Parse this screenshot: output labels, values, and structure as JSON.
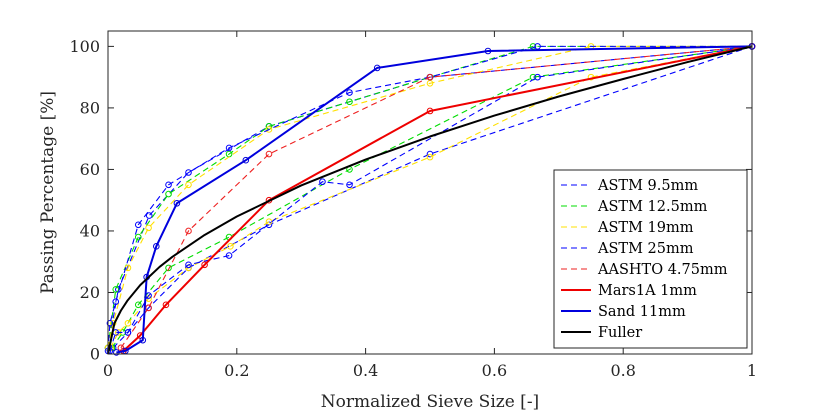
{
  "chart_data": {
    "type": "line",
    "title": "",
    "xlabel": "Normalized Sieve Size [-]",
    "ylabel": "Passing Percentage [%]",
    "xlim": [
      0,
      1
    ],
    "ylim": [
      0,
      105
    ],
    "x_ticks": [
      0,
      0.2,
      0.4,
      0.6,
      0.8,
      1
    ],
    "x_tick_labels": [
      "0",
      "0.2",
      "0.4",
      "0.6",
      "0.8",
      "1"
    ],
    "y_ticks": [
      0,
      20,
      40,
      60,
      80,
      100
    ],
    "y_tick_labels": [
      "0",
      "20",
      "40",
      "60",
      "80",
      "100"
    ],
    "grid": false,
    "legend_position": "lower-right",
    "series": [
      {
        "name": "ASTM 9.5mm",
        "color": "#0000ff",
        "style": "dashed",
        "marker": "circle",
        "x": [
          0.0,
          0.016,
          0.064,
          0.125,
          0.25,
          0.5,
          1.0
        ],
        "y": [
          2,
          21,
          45,
          59,
          74,
          90,
          100
        ]
      },
      {
        "name": "ASTM 9.5mm",
        "color": "#0000ff",
        "style": "dashed",
        "marker": "circle",
        "x": [
          0.008,
          0.031,
          0.063,
          0.125,
          0.25,
          0.5,
          1.0
        ],
        "y": [
          2,
          7,
          15,
          28,
          42,
          65,
          100
        ]
      },
      {
        "name": "ASTM 12.5mm",
        "color": "#00dd00",
        "style": "dashed",
        "marker": "circle",
        "x": [
          0.0,
          0.012,
          0.047,
          0.094,
          0.188,
          0.25,
          0.375,
          0.5,
          0.66,
          1.0
        ],
        "y": [
          2,
          21,
          38,
          52,
          65,
          74,
          82,
          90,
          100,
          100
        ]
      },
      {
        "name": "ASTM 12.5mm",
        "color": "#00dd00",
        "style": "dashed",
        "marker": "circle",
        "x": [
          0.006,
          0.023,
          0.047,
          0.094,
          0.188,
          0.375,
          0.66,
          1.0
        ],
        "y": [
          2,
          7,
          16,
          28,
          38,
          60,
          90,
          100
        ]
      },
      {
        "name": "ASTM 19mm",
        "color": "#ffe000",
        "style": "dashed",
        "marker": "circle",
        "x": [
          0.0,
          0.008,
          0.031,
          0.063,
          0.125,
          0.25,
          0.5,
          0.75,
          1.0
        ],
        "y": [
          2,
          10,
          28,
          41,
          55,
          73,
          88,
          100,
          100
        ]
      },
      {
        "name": "ASTM 19mm",
        "color": "#ffe000",
        "style": "dashed",
        "marker": "circle",
        "x": [
          0.004,
          0.016,
          0.031,
          0.063,
          0.125,
          0.19,
          0.25,
          0.5,
          0.75,
          1.0
        ],
        "y": [
          2,
          7,
          10,
          18,
          28,
          35,
          43,
          64,
          90,
          100
        ]
      },
      {
        "name": "ASTM 25mm",
        "color": "#0000ff",
        "style": "dashed",
        "marker": "circle",
        "x": [
          0.0,
          0.003,
          0.012,
          0.047,
          0.094,
          0.188,
          0.375,
          0.5,
          0.667,
          1.0
        ],
        "y": [
          1,
          10,
          17,
          42,
          55,
          67,
          85,
          90,
          100,
          100
        ]
      },
      {
        "name": "ASTM 25mm",
        "color": "#0000ff",
        "style": "dashed",
        "marker": "circle",
        "x": [
          0.003,
          0.012,
          0.031,
          0.063,
          0.125,
          0.188,
          0.333,
          0.375,
          0.667,
          1.0
        ],
        "y": [
          1,
          7,
          7,
          19,
          29,
          32,
          56,
          55,
          90,
          100
        ]
      },
      {
        "name": "AASHTO 4.75mm",
        "color": "#ee2020",
        "style": "dashed",
        "marker": "circle",
        "x": [
          0.02,
          0.063,
          0.125,
          0.25,
          0.5,
          1.0
        ],
        "y": [
          2,
          15,
          40,
          65,
          90,
          100
        ]
      },
      {
        "name": "Mars1A 1mm",
        "color": "#ee0000",
        "style": "solid",
        "marker": "circle",
        "x": [
          0.024,
          0.05,
          0.09,
          0.15,
          0.25,
          0.5,
          1.0
        ],
        "y": [
          1,
          6,
          16,
          29,
          50,
          79,
          100
        ]
      },
      {
        "name": "Sand 11mm",
        "color": "#0000dd",
        "style": "solid",
        "marker": "circle",
        "x": [
          0.013,
          0.027,
          0.054,
          0.06,
          0.075,
          0.107,
          0.214,
          0.418,
          0.59,
          1.0
        ],
        "y": [
          0.5,
          1,
          4.5,
          25,
          35,
          49,
          63,
          93,
          98.5,
          100
        ]
      },
      {
        "name": "Fuller",
        "color": "#000000",
        "style": "solid",
        "marker": "none",
        "x": [
          0.0,
          0.01,
          0.02,
          0.03,
          0.05,
          0.08,
          0.1,
          0.15,
          0.2,
          0.3,
          0.4,
          0.5,
          0.6,
          0.7,
          0.8,
          0.9,
          1.0
        ],
        "y": [
          0,
          10,
          14.1,
          17.3,
          22.4,
          28.3,
          31.6,
          38.7,
          44.7,
          54.8,
          63.2,
          70.7,
          77.5,
          83.7,
          89.4,
          94.9,
          100
        ]
      }
    ],
    "legend": [
      {
        "label": "ASTM 9.5mm",
        "color": "#0000ff",
        "style": "dashed"
      },
      {
        "label": "ASTM 12.5mm",
        "color": "#00dd00",
        "style": "dashed"
      },
      {
        "label": "ASTM 19mm",
        "color": "#ffe000",
        "style": "dashed"
      },
      {
        "label": "ASTM 25mm",
        "color": "#0000ff",
        "style": "dashed"
      },
      {
        "label": "AASHTO 4.75mm",
        "color": "#ee2020",
        "style": "dashed"
      },
      {
        "label": "Mars1A 1mm",
        "color": "#ee0000",
        "style": "solid"
      },
      {
        "label": "Sand 11mm",
        "color": "#0000dd",
        "style": "solid"
      },
      {
        "label": "Fuller",
        "color": "#000000",
        "style": "solid"
      }
    ]
  }
}
